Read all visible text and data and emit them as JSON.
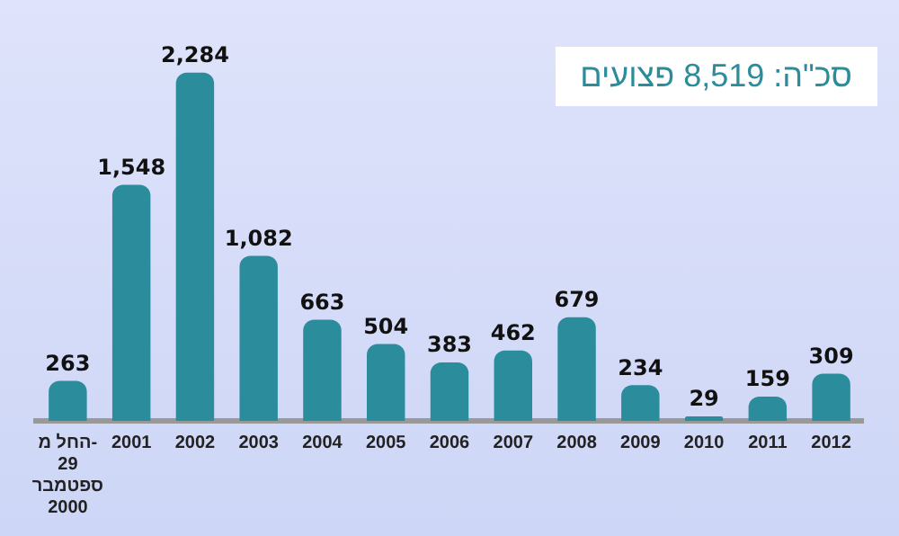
{
  "chart_data": {
    "type": "bar",
    "title": "סכ\"ה: 8,519 פצועים",
    "categories": [
      "החל מ-\n29\nספטמבר\n2000",
      "2001",
      "2002",
      "2003",
      "2004",
      "2005",
      "2006",
      "2007",
      "2008",
      "2009",
      "2010",
      "2011",
      "2012"
    ],
    "values": [
      263,
      1548,
      2284,
      1082,
      663,
      504,
      383,
      462,
      679,
      234,
      29,
      159,
      309
    ],
    "value_labels": [
      "263",
      "1,548",
      "2,284",
      "1,082",
      "663",
      "504",
      "383",
      "462",
      "679",
      "234",
      "29",
      "159",
      "309"
    ],
    "color": "#2b8d9c",
    "grid": false,
    "legend": false
  }
}
